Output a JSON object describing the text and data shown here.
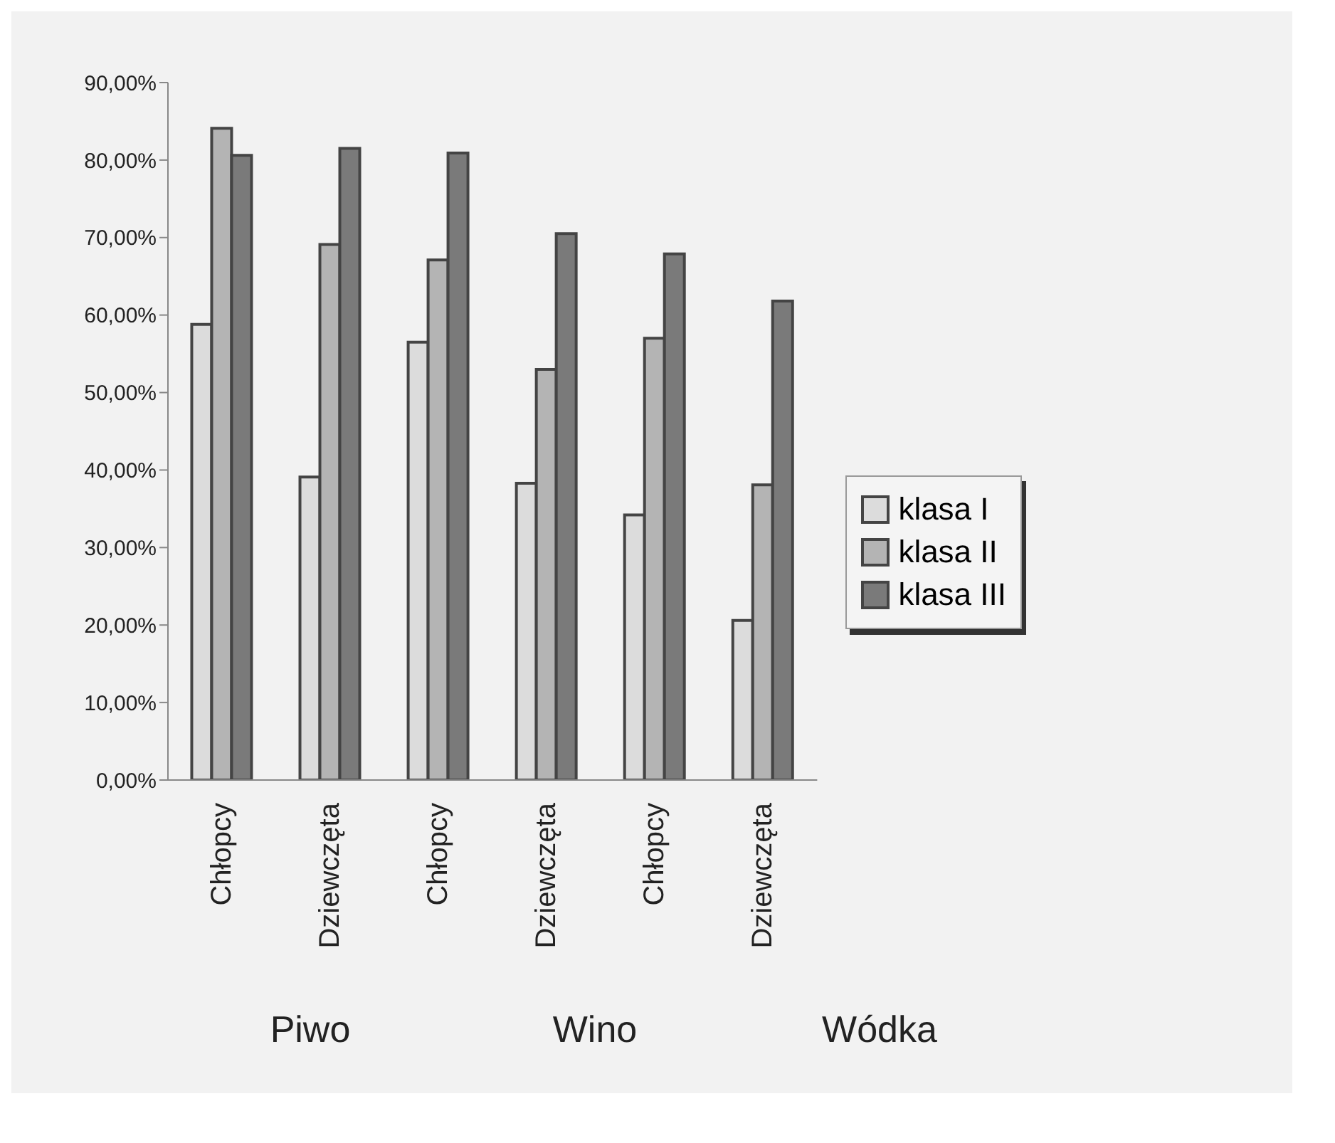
{
  "chart_data": {
    "type": "bar",
    "categories": [
      "Chłopcy",
      "Dziewczęta",
      "Chłopcy",
      "Dziewczęta",
      "Chłopcy",
      "Dziewczęta"
    ],
    "series": [
      {
        "name": "klasa I",
        "color": "#dcdcdc",
        "values": [
          58.8,
          39.1,
          56.5,
          38.3,
          34.2,
          20.6
        ]
      },
      {
        "name": "klasa II",
        "color": "#b4b4b4",
        "values": [
          84.1,
          69.1,
          67.1,
          53.0,
          57.0,
          38.1
        ]
      },
      {
        "name": "klasa III",
        "color": "#7a7a7a",
        "values": [
          80.6,
          81.5,
          80.9,
          70.5,
          67.9,
          61.8
        ]
      }
    ],
    "ylim": [
      0,
      90
    ],
    "yticks": [
      {
        "value": 0,
        "label": "0,00%"
      },
      {
        "value": 10,
        "label": "10,00%"
      },
      {
        "value": 20,
        "label": "20,00%"
      },
      {
        "value": 30,
        "label": "30,00%"
      },
      {
        "value": 40,
        "label": "40,00%"
      },
      {
        "value": 50,
        "label": "50,00%"
      },
      {
        "value": 60,
        "label": "60,00%"
      },
      {
        "value": 70,
        "label": "70,00%"
      },
      {
        "value": 80,
        "label": "80,00%"
      },
      {
        "value": 90,
        "label": "90,00%"
      }
    ],
    "annotations": [
      "Piwo",
      "Wino",
      "Wódka"
    ],
    "legend": "right",
    "grid": false
  }
}
